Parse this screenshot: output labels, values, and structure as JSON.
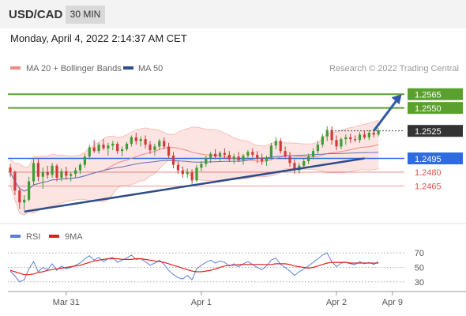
{
  "header": {
    "symbol": "USD/CAD",
    "timeframe": "30 MIN",
    "datetime": "Monday, April 4, 2022 2:14:37 AM CET"
  },
  "chart_data": [
    {
      "type": "candlestick",
      "title": "",
      "legend": [
        {
          "label": "MA 20 + Bollinger Bands",
          "color": "#f28b82"
        },
        {
          "label": "MA 50",
          "color": "#2e4d8a"
        }
      ],
      "credit": "Research © 2022 Trading Central",
      "ylim": [
        1.243,
        1.2585
      ],
      "levels": [
        {
          "value": 1.2565,
          "label": "1.2565",
          "kind": "resistance",
          "color": "#5aa02c"
        },
        {
          "value": 1.255,
          "label": "1.2550",
          "kind": "resistance",
          "color": "#5aa02c"
        },
        {
          "value": 1.2525,
          "label": "1.2525",
          "kind": "last",
          "color": "#333333"
        },
        {
          "value": 1.2495,
          "label": "1.2495",
          "kind": "pivot",
          "color": "#2f6be0"
        },
        {
          "value": 1.248,
          "label": "1.2480",
          "kind": "support",
          "color": "#e05252"
        },
        {
          "value": 1.2465,
          "label": "1.2465",
          "kind": "support",
          "color": "#e05252"
        }
      ],
      "x_ticks": [
        {
          "label": "Mar 31",
          "index": 12
        },
        {
          "label": "Apr 1",
          "index": 41
        },
        {
          "label": "Apr 2",
          "index": 70
        },
        {
          "label": "Apr 9",
          "index": 82
        }
      ],
      "trendline": {
        "from_index": 3,
        "from_value": 1.2437,
        "to_index": 76,
        "to_value": 1.2495
      },
      "projection": {
        "from_index": 78,
        "from_value": 1.2525,
        "to_index": 84,
        "to_value": 1.2565
      },
      "candles": [
        [
          1.2485,
          1.2489,
          1.2475,
          1.248
        ],
        [
          1.248,
          1.2482,
          1.2455,
          1.246
        ],
        [
          1.246,
          1.2463,
          1.244,
          1.2447
        ],
        [
          1.2447,
          1.2455,
          1.2439,
          1.245
        ],
        [
          1.245,
          1.2475,
          1.2448,
          1.247
        ],
        [
          1.247,
          1.2495,
          1.2466,
          1.249
        ],
        [
          1.249,
          1.2495,
          1.247,
          1.2475
        ],
        [
          1.2475,
          1.2485,
          1.2462,
          1.248
        ],
        [
          1.248,
          1.2487,
          1.2473,
          1.2477
        ],
        [
          1.2477,
          1.249,
          1.2474,
          1.2487
        ],
        [
          1.2487,
          1.2489,
          1.247,
          1.2474
        ],
        [
          1.2474,
          1.2484,
          1.247,
          1.2481
        ],
        [
          1.2481,
          1.2486,
          1.2472,
          1.2476
        ],
        [
          1.2476,
          1.248,
          1.247,
          1.2478
        ],
        [
          1.2478,
          1.2485,
          1.2474,
          1.2482
        ],
        [
          1.2482,
          1.249,
          1.2478,
          1.2488
        ],
        [
          1.2488,
          1.25,
          1.2485,
          1.2497
        ],
        [
          1.2497,
          1.251,
          1.2494,
          1.2507
        ],
        [
          1.2507,
          1.2515,
          1.2501,
          1.2503
        ],
        [
          1.2503,
          1.2512,
          1.25,
          1.251
        ],
        [
          1.251,
          1.2516,
          1.2504,
          1.2506
        ],
        [
          1.2506,
          1.2512,
          1.2498,
          1.2509
        ],
        [
          1.2509,
          1.2514,
          1.2504,
          1.2511
        ],
        [
          1.2511,
          1.2513,
          1.25,
          1.2503
        ],
        [
          1.2503,
          1.2508,
          1.2497,
          1.2505
        ],
        [
          1.2505,
          1.2513,
          1.2503,
          1.2511
        ],
        [
          1.2511,
          1.252,
          1.2508,
          1.2518
        ],
        [
          1.2518,
          1.2523,
          1.251,
          1.2514
        ],
        [
          1.2514,
          1.2519,
          1.2508,
          1.2516
        ],
        [
          1.2516,
          1.252,
          1.2506,
          1.251
        ],
        [
          1.251,
          1.2514,
          1.25,
          1.2504
        ],
        [
          1.2504,
          1.2511,
          1.2498,
          1.2508
        ],
        [
          1.2508,
          1.2516,
          1.2504,
          1.2514
        ],
        [
          1.2514,
          1.2518,
          1.2505,
          1.2508
        ],
        [
          1.2508,
          1.2512,
          1.2495,
          1.2498
        ],
        [
          1.2498,
          1.2502,
          1.2484,
          1.2488
        ],
        [
          1.2488,
          1.2492,
          1.2478,
          1.2482
        ],
        [
          1.2482,
          1.2486,
          1.2474,
          1.2478
        ],
        [
          1.2478,
          1.2484,
          1.2474,
          1.248
        ],
        [
          1.248,
          1.2483,
          1.2467,
          1.2471
        ],
        [
          1.2471,
          1.2488,
          1.2469,
          1.2485
        ],
        [
          1.2485,
          1.2492,
          1.2481,
          1.2489
        ],
        [
          1.2489,
          1.2498,
          1.2486,
          1.2495
        ],
        [
          1.2495,
          1.2502,
          1.249,
          1.25
        ],
        [
          1.25,
          1.2505,
          1.2494,
          1.2497
        ],
        [
          1.2497,
          1.2503,
          1.2492,
          1.2501
        ],
        [
          1.2501,
          1.2506,
          1.2495,
          1.2499
        ],
        [
          1.2499,
          1.2503,
          1.2491,
          1.2494
        ],
        [
          1.2494,
          1.25,
          1.2489,
          1.2497
        ],
        [
          1.2497,
          1.2502,
          1.2491,
          1.2493
        ],
        [
          1.2493,
          1.25,
          1.2488,
          1.2498
        ],
        [
          1.2498,
          1.2504,
          1.2495,
          1.2502
        ],
        [
          1.2502,
          1.2506,
          1.2496,
          1.2499
        ],
        [
          1.2499,
          1.2503,
          1.249,
          1.2495
        ],
        [
          1.2495,
          1.25,
          1.2488,
          1.2492
        ],
        [
          1.2492,
          1.2498,
          1.2487,
          1.2496
        ],
        [
          1.2496,
          1.2512,
          1.2494,
          1.2509
        ],
        [
          1.2509,
          1.2518,
          1.2505,
          1.2514
        ],
        [
          1.2514,
          1.2517,
          1.25,
          1.2503
        ],
        [
          1.2503,
          1.2508,
          1.2494,
          1.2497
        ],
        [
          1.2497,
          1.2502,
          1.2486,
          1.249
        ],
        [
          1.249,
          1.2494,
          1.2478,
          1.2482
        ],
        [
          1.2482,
          1.249,
          1.2478,
          1.2487
        ],
        [
          1.2487,
          1.2495,
          1.2484,
          1.2492
        ],
        [
          1.2492,
          1.25,
          1.2489,
          1.2497
        ],
        [
          1.2497,
          1.2506,
          1.2494,
          1.2503
        ],
        [
          1.2503,
          1.2514,
          1.25,
          1.251
        ],
        [
          1.251,
          1.2522,
          1.2507,
          1.2519
        ],
        [
          1.2519,
          1.253,
          1.2514,
          1.2526
        ],
        [
          1.2526,
          1.253,
          1.251,
          1.2515
        ],
        [
          1.2515,
          1.252,
          1.2504,
          1.2508
        ],
        [
          1.2508,
          1.2518,
          1.2505,
          1.2516
        ],
        [
          1.2516,
          1.2521,
          1.251,
          1.2518
        ],
        [
          1.2518,
          1.2522,
          1.2512,
          1.2516
        ],
        [
          1.2516,
          1.252,
          1.2513,
          1.2515
        ],
        [
          1.2515,
          1.2524,
          1.2512,
          1.2521
        ],
        [
          1.2521,
          1.2525,
          1.2516,
          1.2518
        ],
        [
          1.2518,
          1.2526,
          1.2515,
          1.2523
        ],
        [
          1.2523,
          1.2527,
          1.2518,
          1.2521
        ],
        [
          1.2521,
          1.2528,
          1.2519,
          1.2525
        ]
      ]
    },
    {
      "type": "line",
      "title": "",
      "legend": [
        {
          "label": "RSI",
          "color": "#5b7fd6"
        },
        {
          "label": "9MA",
          "color": "#e02020"
        }
      ],
      "ylim": [
        20,
        80
      ],
      "y_ticks": [
        70,
        50,
        30
      ],
      "guide_levels": [
        70,
        50,
        30
      ],
      "series": [
        {
          "name": "RSI",
          "values": [
            45,
            38,
            30,
            33,
            48,
            58,
            44,
            50,
            47,
            55,
            46,
            52,
            48,
            50,
            53,
            56,
            62,
            66,
            60,
            64,
            58,
            62,
            64,
            57,
            60,
            63,
            67,
            61,
            62,
            58,
            53,
            56,
            60,
            54,
            46,
            40,
            36,
            34,
            39,
            33,
            48,
            53,
            57,
            60,
            56,
            59,
            57,
            52,
            55,
            51,
            55,
            58,
            54,
            50,
            47,
            52,
            60,
            63,
            54,
            50,
            45,
            39,
            44,
            48,
            52,
            57,
            62,
            67,
            70,
            58,
            51,
            56,
            57,
            55,
            54,
            58,
            55,
            57,
            54,
            58
          ]
        },
        {
          "name": "9MA",
          "values": [
            46,
            44,
            42,
            40,
            40,
            41,
            43,
            44,
            46,
            47,
            48,
            49,
            50,
            51,
            52,
            53,
            55,
            57,
            59,
            60,
            61,
            62,
            62,
            62,
            61,
            61,
            61,
            62,
            62,
            61,
            60,
            59,
            58,
            57,
            55,
            53,
            51,
            49,
            47,
            45,
            44,
            44,
            45,
            46,
            48,
            50,
            52,
            53,
            53,
            54,
            54,
            54,
            54,
            54,
            54,
            54,
            54,
            55,
            55,
            55,
            54,
            52,
            51,
            50,
            49,
            50,
            52,
            54,
            56,
            57,
            57,
            57,
            57,
            56,
            56,
            56,
            56,
            56,
            56,
            56
          ]
        }
      ],
      "x_ticks": [
        "Mar 31",
        "Apr 1",
        "Apr 2",
        "Apr 9"
      ]
    }
  ]
}
